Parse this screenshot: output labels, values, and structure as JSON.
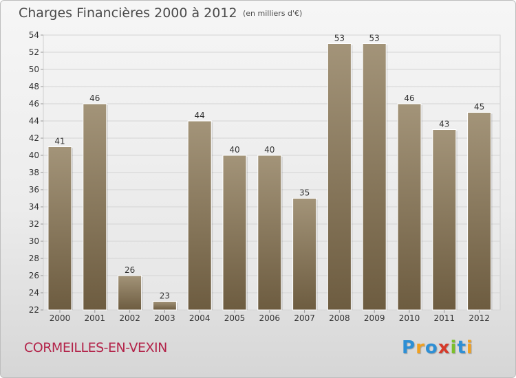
{
  "header": {
    "title": "Charges Financières 2000 à 2012",
    "subtitle": "(en milliers d'€)"
  },
  "footer": {
    "commune": "CORMEILLES-EN-VEXIN",
    "logo_text": "Proxiti",
    "logo_letters": [
      {
        "char": "P",
        "color": "#2d8fd5"
      },
      {
        "char": "r",
        "color": "#f0a020"
      },
      {
        "char": "o",
        "color": "#2d8fd5"
      },
      {
        "char": "x",
        "color": "#d63a2a"
      },
      {
        "char": "i",
        "color": "#7bbf2a"
      },
      {
        "char": "t",
        "color": "#2d8fd5"
      },
      {
        "char": "i",
        "color": "#f0a020"
      }
    ]
  },
  "colors": {
    "bar_top": "#a39479",
    "bar_bottom": "#6d5c40",
    "grid": "#d4d4d4",
    "axis_text": "#333333"
  },
  "chart_data": {
    "type": "bar",
    "title": "Charges Financières 2000 à 2012",
    "subtitle": "(en milliers d'€)",
    "categories": [
      "2000",
      "2001",
      "2002",
      "2003",
      "2004",
      "2005",
      "2006",
      "2007",
      "2008",
      "2009",
      "2010",
      "2011",
      "2012"
    ],
    "values": [
      41,
      46,
      26,
      23,
      44,
      40,
      40,
      35,
      53,
      53,
      46,
      43,
      45
    ],
    "ylim": [
      22,
      54
    ],
    "yticks": [
      22,
      24,
      26,
      28,
      30,
      32,
      34,
      36,
      38,
      40,
      42,
      44,
      46,
      48,
      50,
      52,
      54
    ],
    "grid": true,
    "legend": "none",
    "xlabel": "",
    "ylabel": ""
  }
}
